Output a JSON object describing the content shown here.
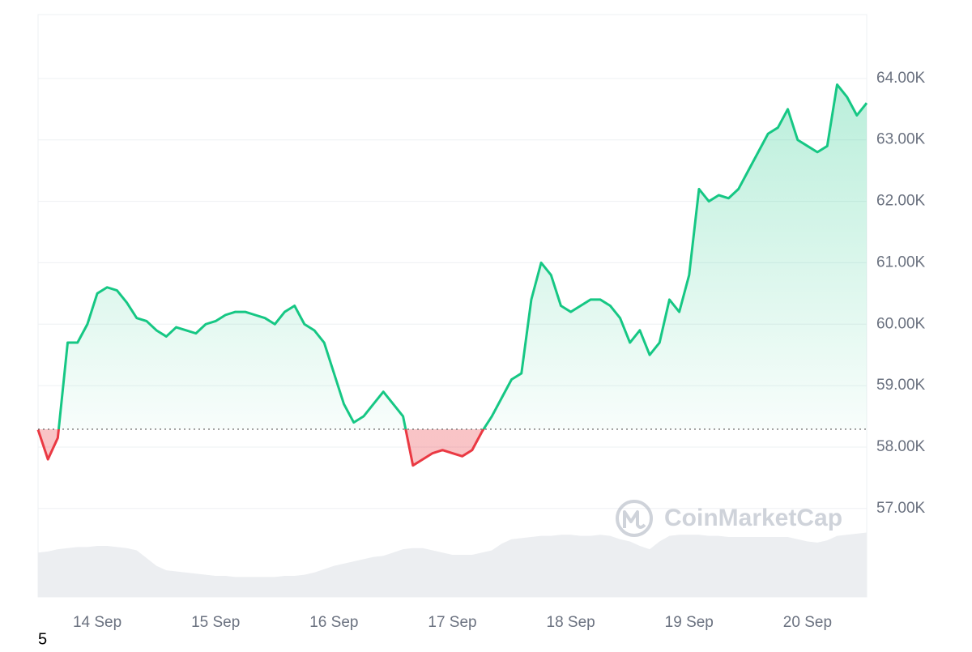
{
  "chart_data": {
    "type": "line",
    "categories": [
      null,
      null,
      null,
      null,
      null,
      null,
      "14 Sep",
      null,
      null,
      null,
      null,
      null,
      null,
      null,
      null,
      null,
      null,
      null,
      "15 Sep",
      null,
      null,
      null,
      null,
      null,
      null,
      null,
      null,
      null,
      null,
      null,
      "16 Sep",
      null,
      null,
      null,
      null,
      null,
      null,
      null,
      null,
      null,
      null,
      null,
      "17 Sep",
      null,
      null,
      null,
      null,
      null,
      null,
      null,
      null,
      null,
      null,
      null,
      "18 Sep",
      null,
      null,
      null,
      null,
      null,
      null,
      null,
      null,
      null,
      null,
      null,
      "19 Sep",
      null,
      null,
      null,
      null,
      null,
      null,
      null,
      null,
      null,
      null,
      null,
      "20 Sep",
      null,
      null,
      null,
      null,
      null,
      null
    ],
    "values": [
      58280,
      57800,
      58150,
      59700,
      59700,
      60000,
      60500,
      60600,
      60550,
      60350,
      60100,
      60050,
      59900,
      59800,
      59950,
      59900,
      59850,
      60000,
      60050,
      60150,
      60200,
      60200,
      60150,
      60100,
      60000,
      60200,
      60300,
      60000,
      59900,
      59700,
      59200,
      58700,
      58400,
      58500,
      58700,
      58900,
      58700,
      58500,
      57700,
      57800,
      57900,
      57950,
      57900,
      57850,
      57950,
      58250,
      58500,
      58800,
      59100,
      59200,
      60400,
      61000,
      60800,
      60300,
      60200,
      60300,
      60400,
      60400,
      60300,
      60100,
      59700,
      59900,
      59500,
      59700,
      60400,
      60200,
      60800,
      62200,
      62000,
      62100,
      62050,
      62200,
      62500,
      62800,
      63100,
      63200,
      63500,
      63000,
      62900,
      62800,
      62900,
      63900,
      63700,
      63400,
      63600
    ],
    "baseline": 58290,
    "up_color": "#16c784",
    "down_color": "#ea3943",
    "ylim": [
      55560,
      65040
    ],
    "yticks": [
      {
        "value": 57000,
        "label": "57.00K"
      },
      {
        "value": 58000,
        "label": "58.00K"
      },
      {
        "value": 59000,
        "label": "59.00K"
      },
      {
        "value": 60000,
        "label": "60.00K"
      },
      {
        "value": 61000,
        "label": "61.00K"
      },
      {
        "value": 62000,
        "label": "62.00K"
      },
      {
        "value": 63000,
        "label": "63.00K"
      },
      {
        "value": 64000,
        "label": "64.00K"
      }
    ],
    "grid": true,
    "volume": {
      "values": [
        40,
        41,
        43,
        44,
        45,
        45,
        46,
        46,
        45,
        44,
        42,
        35,
        28,
        24,
        23,
        22,
        21,
        20,
        19,
        19,
        18,
        18,
        18,
        18,
        18,
        19,
        19,
        20,
        22,
        25,
        28,
        30,
        32,
        34,
        36,
        37,
        40,
        43,
        44,
        44,
        42,
        40,
        38,
        38,
        38,
        40,
        42,
        48,
        52,
        53,
        54,
        55,
        55,
        56,
        56,
        55,
        55,
        56,
        55,
        52,
        50,
        46,
        43,
        50,
        55,
        56,
        56,
        56,
        55,
        55,
        54,
        54,
        54,
        54,
        54,
        54,
        54,
        52,
        50,
        49,
        51,
        55,
        56,
        57,
        58
      ],
      "ylim": [
        0,
        100
      ],
      "color": "#eceef1"
    },
    "watermark": "CoinMarketCap",
    "footnote": "5"
  }
}
